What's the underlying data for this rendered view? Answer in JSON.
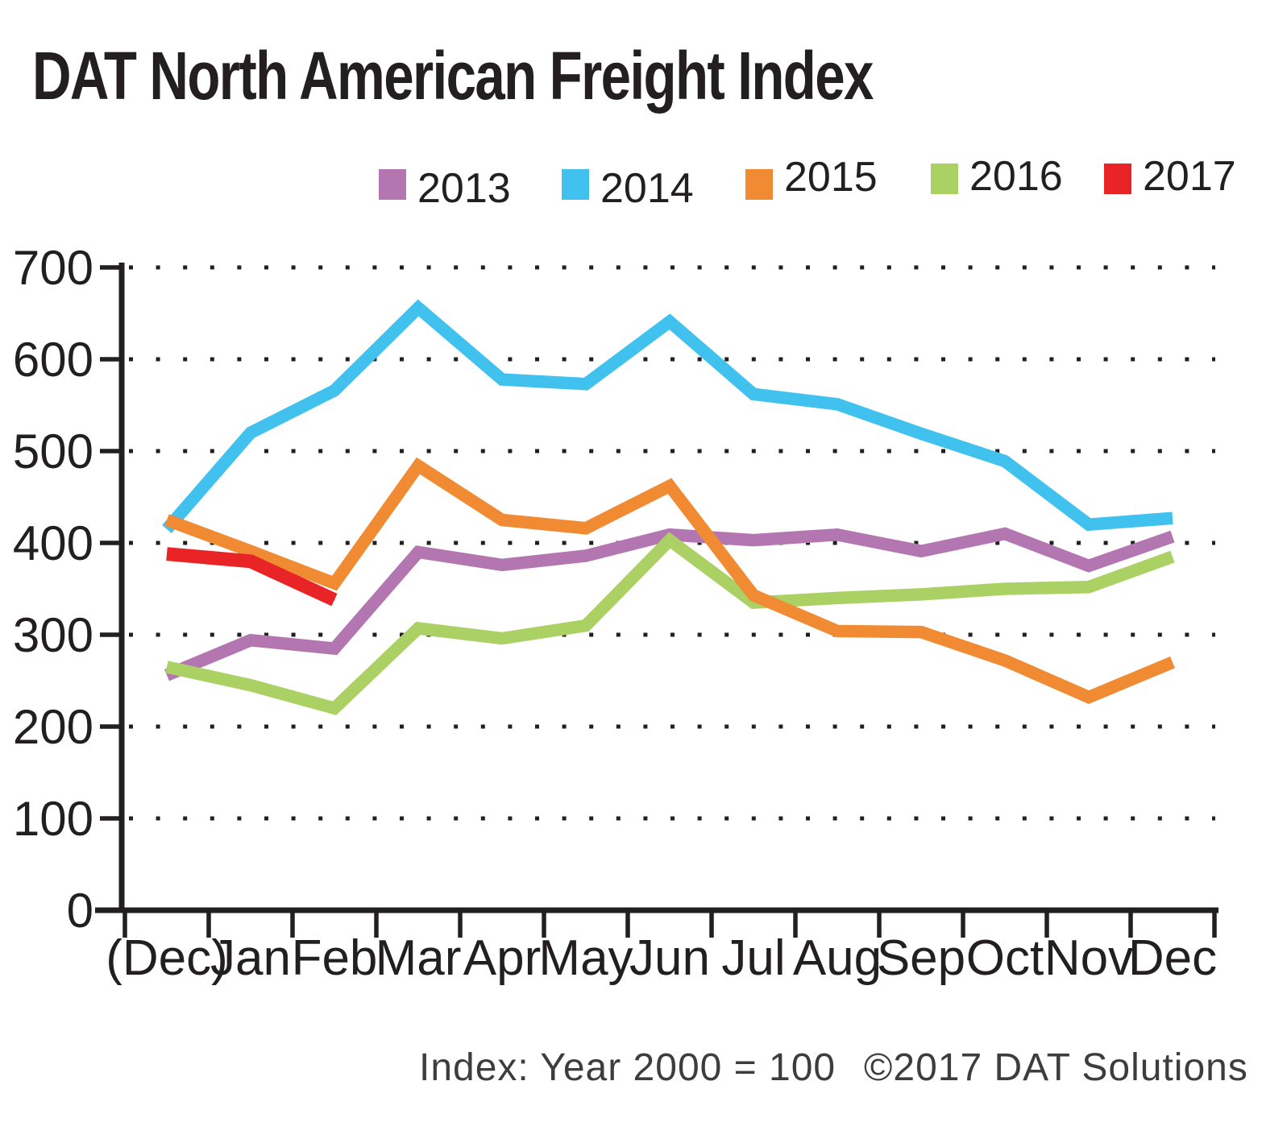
{
  "page": {
    "title": "DAT North American Freight Index"
  },
  "footer": {
    "note": "Index: Year 2000 = 100",
    "copyright": "©2017 DAT Solutions"
  },
  "chart_data": {
    "type": "line",
    "title": "DAT North American Freight Index",
    "note": "Index: Year 2000 = 100",
    "categories": [
      "(Dec)",
      "Jan",
      "Feb",
      "Mar",
      "Apr",
      "May",
      "Jun",
      "Jul",
      "Aug",
      "Sep",
      "Oct",
      "Nov",
      "Dec"
    ],
    "series": [
      {
        "name": "2013",
        "color": "#b476b0",
        "values": [
          256,
          294,
          285,
          390,
          376,
          386,
          409,
          403,
          409,
          391,
          410,
          375,
          407
        ]
      },
      {
        "name": "2014",
        "color": "#41c2ee",
        "values": [
          415,
          520,
          566,
          656,
          578,
          573,
          641,
          562,
          551,
          519,
          489,
          420,
          427
        ]
      },
      {
        "name": "2015",
        "color": "#f08a33",
        "values": [
          425,
          391,
          356,
          484,
          425,
          416,
          462,
          343,
          304,
          303,
          272,
          232,
          270
        ]
      },
      {
        "name": "2016",
        "color": "#abd165",
        "values": [
          265,
          245,
          220,
          307,
          296,
          310,
          403,
          335,
          340,
          344,
          350,
          352,
          385
        ]
      },
      {
        "name": "2017",
        "color": "#e92427",
        "values": [
          388,
          380,
          338
        ]
      }
    ],
    "ylim": [
      0,
      700
    ],
    "y_tick_step": 100,
    "y_tick_labels": [
      "0",
      "100",
      "200",
      "300",
      "400",
      "500",
      "600",
      "700"
    ],
    "grid": "dotted-horizontal",
    "legend_position": "top",
    "axis_color": "#231f20"
  }
}
